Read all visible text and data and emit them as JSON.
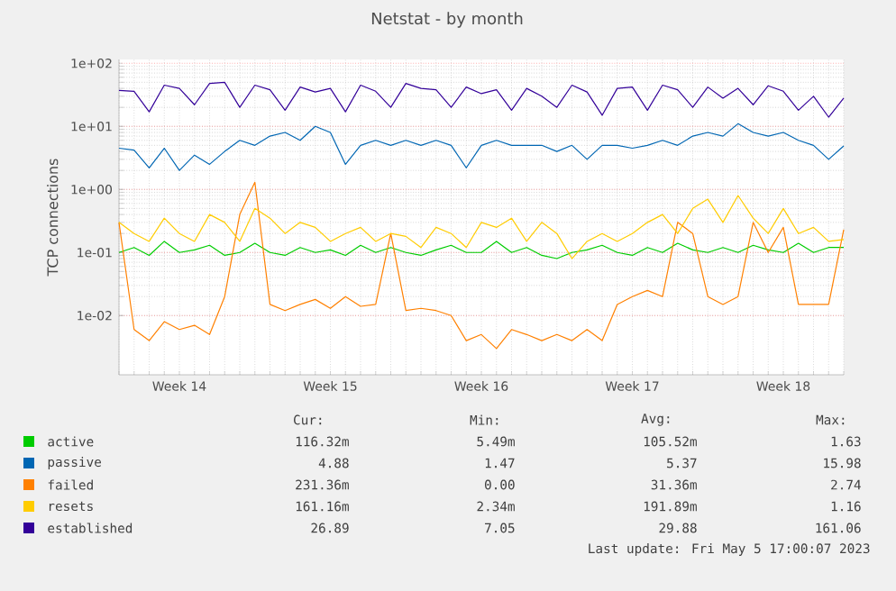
{
  "chart_data": {
    "type": "line",
    "title": "Netstat - by month",
    "ylabel": "TCP connections",
    "categories": [
      null,
      null,
      null,
      null,
      "Week 14",
      null,
      null,
      null,
      null,
      null,
      null,
      null,
      null,
      null,
      "Week 15",
      null,
      null,
      null,
      null,
      null,
      null,
      null,
      null,
      null,
      "Week 16",
      null,
      null,
      null,
      null,
      null,
      null,
      null,
      null,
      null,
      "Week 17",
      null,
      null,
      null,
      null,
      null,
      null,
      null,
      null,
      null,
      "Week 18",
      null,
      null,
      null,
      null
    ],
    "series": [
      {
        "name": "active",
        "color": "#00cc00",
        "values": [
          0.1,
          0.12,
          0.09,
          0.15,
          0.1,
          0.11,
          0.13,
          0.09,
          0.1,
          0.14,
          0.1,
          0.09,
          0.12,
          0.1,
          0.11,
          0.09,
          0.13,
          0.1,
          0.12,
          0.1,
          0.09,
          0.11,
          0.13,
          0.1,
          0.1,
          0.15,
          0.1,
          0.12,
          0.09,
          0.08,
          0.1,
          0.11,
          0.13,
          0.1,
          0.09,
          0.12,
          0.1,
          0.14,
          0.11,
          0.1,
          0.12,
          0.1,
          0.13,
          0.11,
          0.1,
          0.14,
          0.1,
          0.12,
          0.12
        ]
      },
      {
        "name": "passive",
        "color": "#0066b3",
        "values": [
          4.5,
          4.2,
          2.2,
          4.5,
          2.0,
          3.5,
          2.5,
          4,
          6,
          5,
          7,
          8,
          6,
          10,
          8,
          2.5,
          5,
          6,
          5,
          6,
          5,
          6,
          5,
          2.2,
          5,
          6,
          5,
          5,
          5,
          4,
          5,
          3,
          5,
          5,
          4.5,
          5,
          6,
          5,
          7,
          8,
          7,
          11,
          8,
          7,
          8,
          6,
          5,
          3,
          4.9
        ]
      },
      {
        "name": "failed",
        "color": "#ff8000",
        "values": [
          0.3,
          0.006,
          0.004,
          0.008,
          0.006,
          0.007,
          0.005,
          0.02,
          0.4,
          1.3,
          0.015,
          0.012,
          0.015,
          0.018,
          0.013,
          0.02,
          0.014,
          0.015,
          0.2,
          0.012,
          0.013,
          0.012,
          0.01,
          0.004,
          0.005,
          0.003,
          0.006,
          0.005,
          0.004,
          0.005,
          0.004,
          0.006,
          0.004,
          0.015,
          0.02,
          0.025,
          0.02,
          0.3,
          0.2,
          0.02,
          0.015,
          0.02,
          0.3,
          0.1,
          0.25,
          0.015,
          0.015,
          0.015,
          0.23
        ]
      },
      {
        "name": "resets",
        "color": "#ffcc00",
        "values": [
          0.3,
          0.2,
          0.15,
          0.35,
          0.2,
          0.15,
          0.4,
          0.3,
          0.15,
          0.5,
          0.35,
          0.2,
          0.3,
          0.25,
          0.15,
          0.2,
          0.25,
          0.15,
          0.2,
          0.18,
          0.12,
          0.25,
          0.2,
          0.12,
          0.3,
          0.25,
          0.35,
          0.15,
          0.3,
          0.2,
          0.08,
          0.15,
          0.2,
          0.15,
          0.2,
          0.3,
          0.4,
          0.2,
          0.5,
          0.7,
          0.3,
          0.8,
          0.35,
          0.2,
          0.5,
          0.2,
          0.25,
          0.15,
          0.16
        ]
      },
      {
        "name": "established",
        "color": "#330099",
        "values": [
          37,
          36,
          17,
          45,
          40,
          22,
          48,
          50,
          20,
          45,
          38,
          18,
          42,
          35,
          40,
          17,
          45,
          36,
          20,
          48,
          40,
          38,
          20,
          42,
          33,
          38,
          18,
          40,
          30,
          20,
          45,
          35,
          15,
          40,
          42,
          18,
          45,
          38,
          20,
          42,
          28,
          40,
          22,
          44,
          36,
          18,
          30,
          14,
          28
        ]
      }
    ],
    "ylim": [
      0.00115,
      115
    ],
    "yticks": [
      {
        "value": 0.01,
        "label": "1e-02"
      },
      {
        "value": 0.1,
        "label": "1e-01"
      },
      {
        "value": 1,
        "label": "1e+00"
      },
      {
        "value": 10,
        "label": "1e+01"
      },
      {
        "value": 100,
        "label": "1e+02"
      }
    ],
    "log": true,
    "grid": true,
    "legend": "bottom",
    "line_style": "solid",
    "marker": "none",
    "annotations": [
      "Cur:",
      "Min:",
      "Avg:",
      "Max:",
      "116.32m",
      "5.49m",
      "105.52m",
      "1.63",
      "4.88",
      "1.47",
      "5.37",
      "15.98",
      "231.36m",
      "0.00",
      "31.36m",
      "2.74",
      "161.16m",
      "2.34m",
      "191.89m",
      "1.16",
      "26.89",
      "7.05",
      "29.88",
      "161.06",
      "Last update: Fri May  5 17:00:07 2023"
    ]
  }
}
